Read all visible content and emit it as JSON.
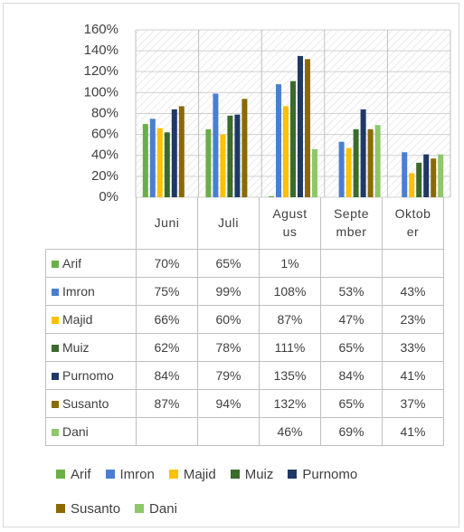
{
  "chart_data": {
    "type": "bar",
    "categories": [
      "Juni",
      "Juli",
      "Agustus",
      "September",
      "Oktober"
    ],
    "series": [
      {
        "name": "Arif",
        "color": "#6aaf45",
        "values": [
          70,
          65,
          1,
          null,
          null
        ],
        "value_labels": [
          "70%",
          "65%",
          "1%",
          null,
          null
        ]
      },
      {
        "name": "Imron",
        "color": "#4a7fd0",
        "values": [
          75,
          99,
          108,
          53,
          43
        ],
        "value_labels": [
          "75%",
          "99%",
          "108%",
          "53%",
          "43%"
        ]
      },
      {
        "name": "Majid",
        "color": "#ffc000",
        "values": [
          66,
          60,
          87,
          47,
          23
        ],
        "value_labels": [
          "66%",
          "60%",
          "87%",
          "47%",
          "23%"
        ]
      },
      {
        "name": "Muiz",
        "color": "#3b6b2b",
        "values": [
          62,
          78,
          111,
          65,
          33
        ],
        "value_labels": [
          "62%",
          "78%",
          "111%",
          "65%",
          "33%"
        ]
      },
      {
        "name": "Purnomo",
        "color": "#1f3864",
        "values": [
          84,
          79,
          135,
          84,
          41
        ],
        "value_labels": [
          "84%",
          "79%",
          "135%",
          "84%",
          "41%"
        ]
      },
      {
        "name": "Susanto",
        "color": "#8a6a05",
        "values": [
          87,
          94,
          132,
          65,
          37
        ],
        "value_labels": [
          "87%",
          "94%",
          "132%",
          "65%",
          "37%"
        ]
      },
      {
        "name": "Dani",
        "color": "#8dc869",
        "values": [
          null,
          null,
          46,
          69,
          41
        ],
        "value_labels": [
          null,
          null,
          "46%",
          "69%",
          "41%"
        ]
      }
    ],
    "ylim": [
      0,
      160
    ],
    "yticks": [
      {
        "value": 0,
        "label": "0%"
      },
      {
        "value": 20,
        "label": "20%"
      },
      {
        "value": 40,
        "label": "40%"
      },
      {
        "value": 60,
        "label": "60%"
      },
      {
        "value": 80,
        "label": "80%"
      },
      {
        "value": 100,
        "label": "100%"
      },
      {
        "value": 120,
        "label": "120%"
      },
      {
        "value": 140,
        "label": "140%"
      },
      {
        "value": 160,
        "label": "160%"
      }
    ],
    "grid": true
  }
}
